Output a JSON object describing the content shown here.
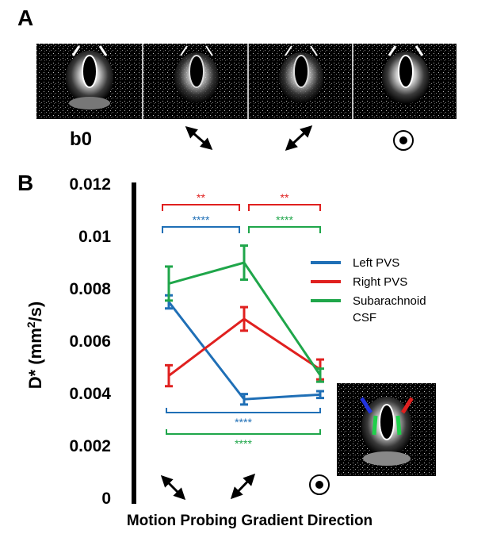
{
  "figure": {
    "panel_a_label": "A",
    "panel_b_label": "B",
    "b0_label": "b0"
  },
  "colors": {
    "left_pvs": "#1f6fb6",
    "right_pvs": "#e0201f",
    "subarachnoid": "#1fa64a",
    "axis": "#000000"
  },
  "icons": [
    "diagonal-arrow-nw-se-icon",
    "diagonal-arrow-ne-sw-icon",
    "through-plane-dot-icon"
  ],
  "chart_data": {
    "type": "line",
    "xlabel": "Motion Probing Gradient Direction",
    "ylabel": "D* (mm²/s)",
    "ylabel_main": "D* (mm",
    "ylabel_sup": "2",
    "ylabel_end": "/s)",
    "ylim": [
      0,
      0.012
    ],
    "yticks": [
      "0",
      "0.002",
      "0.004",
      "0.006",
      "0.008",
      "0.01",
      "0.012"
    ],
    "ytick_values": [
      0,
      0.002,
      0.004,
      0.006,
      0.008,
      0.01,
      0.012
    ],
    "x": [
      1,
      2,
      3
    ],
    "categories": [
      "diagonal-nw-se",
      "diagonal-ne-sw",
      "through-plane"
    ],
    "series": [
      {
        "name": "Left PVS",
        "key": "left_pvs",
        "values": [
          0.0075,
          0.00378,
          0.00396
        ],
        "errors": [
          0.00025,
          0.0002,
          0.00013
        ]
      },
      {
        "name": "Right PVS",
        "key": "right_pvs",
        "values": [
          0.00468,
          0.00685,
          0.00492
        ],
        "errors": [
          0.0004,
          0.00045,
          0.00038
        ]
      },
      {
        "name": "Subarachnoid CSF",
        "key": "subarachnoid",
        "name_line1": "Subarachnoid",
        "name_line2": "CSF",
        "values": [
          0.0082,
          0.009,
          0.0047
        ],
        "errors": [
          0.00065,
          0.00065,
          0.00025
        ]
      }
    ],
    "significance": [
      {
        "color_key": "right_pvs",
        "label": "**",
        "from": 1,
        "to": 2,
        "position": "top"
      },
      {
        "color_key": "right_pvs",
        "label": "**",
        "from": 2,
        "to": 3,
        "position": "top"
      },
      {
        "color_key": "left_pvs",
        "label": "****",
        "from": 1,
        "to": 2,
        "position": "top"
      },
      {
        "color_key": "subarachnoid",
        "label": "****",
        "from": 2,
        "to": 3,
        "position": "top"
      },
      {
        "color_key": "left_pvs",
        "label": "****",
        "from": 1,
        "to": 3,
        "position": "bottom"
      },
      {
        "color_key": "subarachnoid",
        "label": "****",
        "from": 1,
        "to": 3,
        "position": "bottom"
      }
    ],
    "legend_position": "right"
  }
}
